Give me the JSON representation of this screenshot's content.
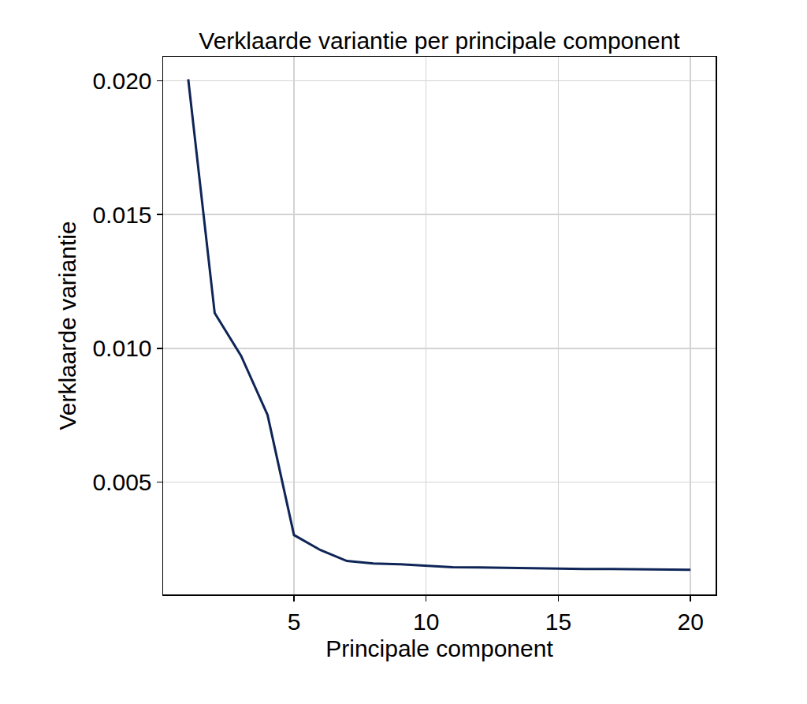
{
  "chart_data": {
    "type": "line",
    "title": "Verklaarde variantie per principale component",
    "x_label": "Principale component",
    "y_label": "Verklaarde variantie",
    "x": [
      1,
      2,
      3,
      4,
      5,
      6,
      7,
      8,
      9,
      10,
      11,
      12,
      13,
      14,
      15,
      16,
      17,
      18,
      19,
      20
    ],
    "values": [
      0.02006,
      0.01132,
      0.00972,
      0.00751,
      0.00302,
      0.00246,
      0.00205,
      0.00196,
      0.00193,
      0.00187,
      0.00182,
      0.00181,
      0.00179,
      0.00178,
      0.00177,
      0.00175,
      0.00175,
      0.00174,
      0.00172,
      0.00172
    ],
    "color": "#0f2557",
    "xlim": [
      0.05,
      20.95
    ],
    "ylim": [
      0.0008,
      0.0209
    ],
    "xticks": [
      5,
      10,
      15,
      20
    ],
    "yticks": [
      0.005,
      {
        "value": 0.01,
        "label": "0.010"
      },
      0.015,
      {
        "value": 0.02,
        "label": "0.020"
      }
    ],
    "grid": true
  }
}
